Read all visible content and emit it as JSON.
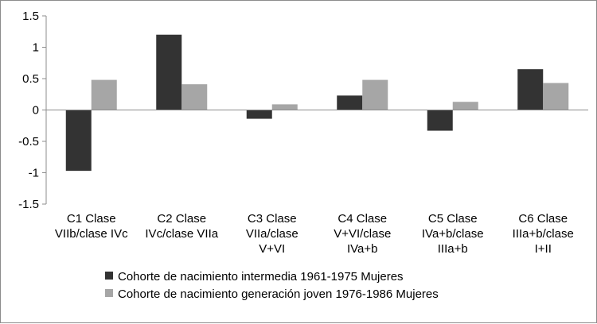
{
  "chart_data": {
    "type": "bar",
    "categories": [
      [
        "C1 Clase",
        "VIIb/clase IVc"
      ],
      [
        "C2 Clase",
        "IVc/clase VIIa"
      ],
      [
        "C3 Clase",
        "VIIa/clase",
        "V+VI"
      ],
      [
        "C4 Clase",
        "V+VI/clase",
        "IVa+b"
      ],
      [
        "C5 Clase",
        "IVa+b/clase",
        "IIIa+b"
      ],
      [
        "C6 Clase",
        "IIIa+b/clase",
        "I+II"
      ]
    ],
    "series": [
      {
        "name": "Cohorte de nacimiento intermedia 1961-1975 Mujeres",
        "color": "#333333",
        "values": [
          -0.97,
          1.2,
          -0.14,
          0.23,
          -0.33,
          0.65
        ]
      },
      {
        "name": "Cohorte de nacimiento generación joven 1976-1986 Mujeres",
        "color": "#a6a6a6",
        "values": [
          0.48,
          0.41,
          0.09,
          0.48,
          0.13,
          0.43
        ]
      }
    ],
    "yticks": [
      "1.5",
      "1",
      "0.5",
      "0",
      "-0.5",
      "-1",
      "-1.5"
    ],
    "ylim": [
      -1.5,
      1.5
    ],
    "grid": false,
    "legend": "bottom",
    "title": "",
    "xlabel": "",
    "ylabel": ""
  }
}
